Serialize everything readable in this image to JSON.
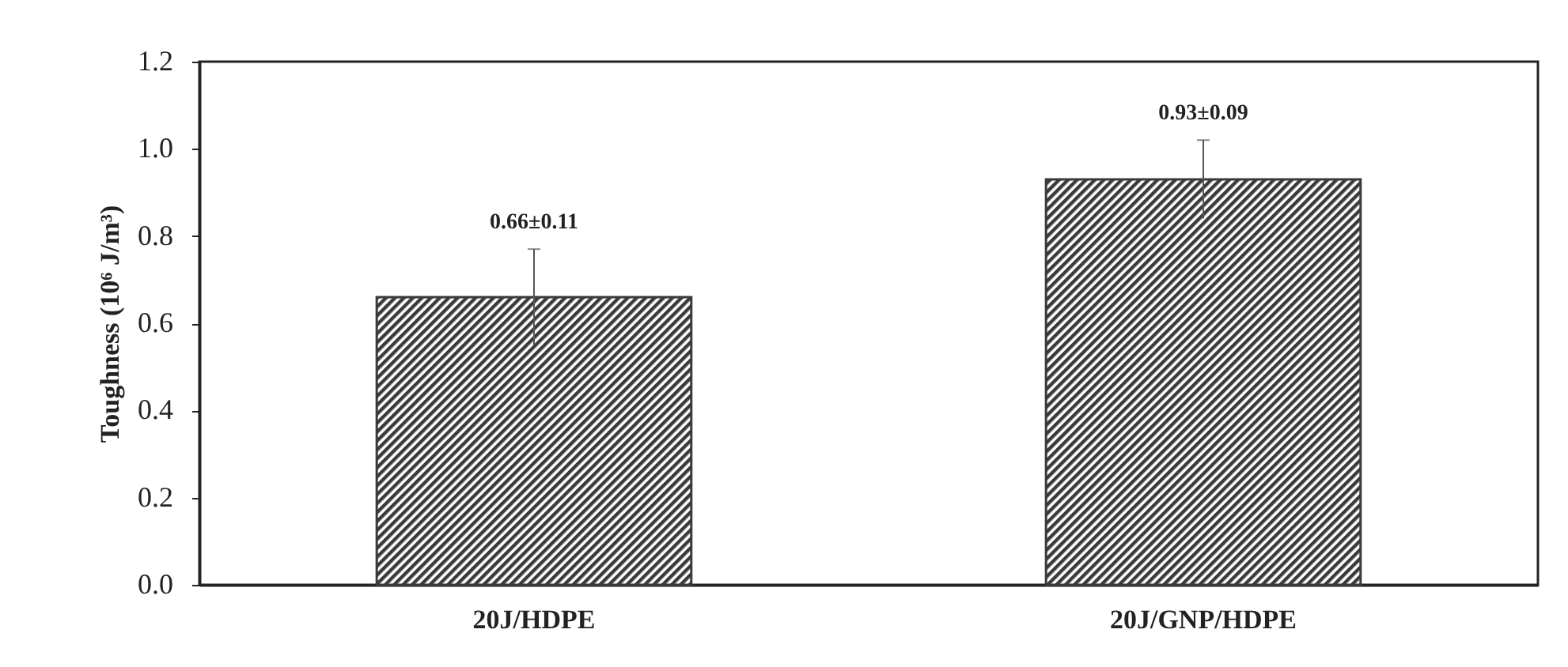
{
  "chart_data": {
    "type": "bar",
    "ylabel": "Toughness (10⁶ J/m³)",
    "categories": [
      "20J/HDPE",
      "20J/GNP/HDPE"
    ],
    "values": [
      0.66,
      0.93
    ],
    "errors": [
      0.11,
      0.09
    ],
    "value_labels": [
      "0.66±0.11",
      "0.93±0.09"
    ],
    "color": "#3a3a3a",
    "ylim": [
      0,
      1.2
    ],
    "yticks": [
      {
        "value": 0,
        "label": "0.0"
      },
      {
        "value": 0.2,
        "label": "0.2"
      },
      {
        "value": 0.4,
        "label": "0.4"
      },
      {
        "value": 0.6,
        "label": "0.6"
      },
      {
        "value": 0.8,
        "label": "0.8"
      },
      {
        "value": 1,
        "label": "1.0"
      },
      {
        "value": 1.2,
        "label": "1.2"
      }
    ],
    "grid": false
  }
}
